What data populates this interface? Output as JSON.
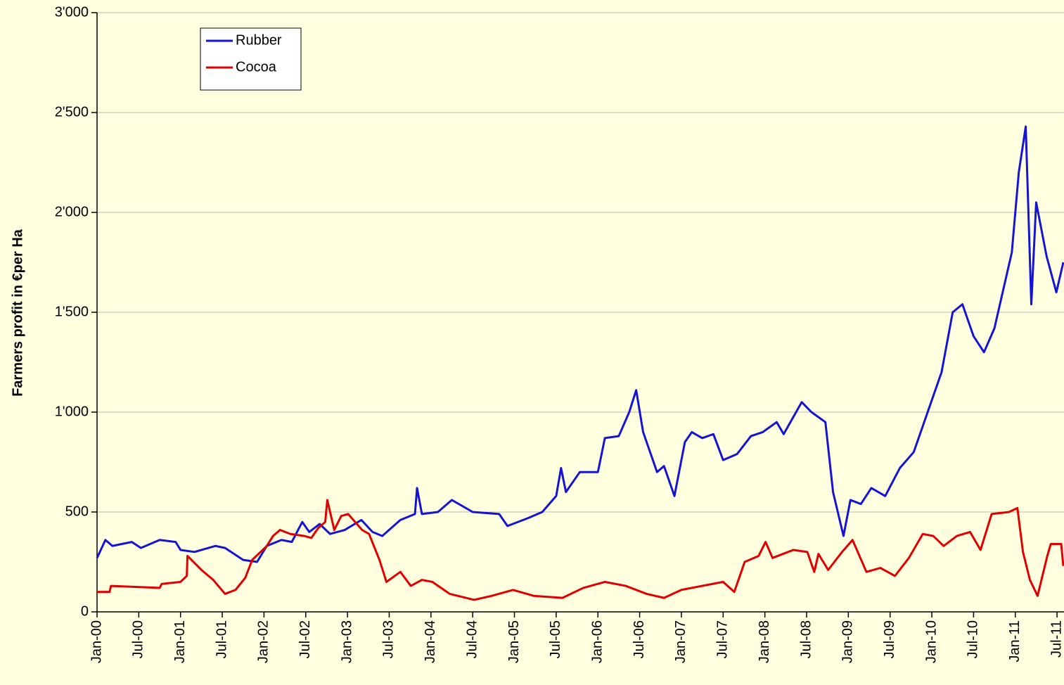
{
  "chart_data": {
    "type": "line",
    "ylabel": "Farmers profit in €per Ha",
    "xlim": [
      0,
      139
    ],
    "xticks": [
      {
        "value": 0,
        "label": "Jan-00"
      },
      {
        "value": 6,
        "label": "Jul-00"
      },
      {
        "value": 12,
        "label": "Jan-01"
      },
      {
        "value": 18,
        "label": "Jul-01"
      },
      {
        "value": 24,
        "label": "Jan-02"
      },
      {
        "value": 30,
        "label": "Jul-02"
      },
      {
        "value": 36,
        "label": "Jan-03"
      },
      {
        "value": 42,
        "label": "Jul-03"
      },
      {
        "value": 48,
        "label": "Jan-04"
      },
      {
        "value": 54,
        "label": "Jul-04"
      },
      {
        "value": 60,
        "label": "Jan-05"
      },
      {
        "value": 66,
        "label": "Jul-05"
      },
      {
        "value": 72,
        "label": "Jan-06"
      },
      {
        "value": 78,
        "label": "Jul-06"
      },
      {
        "value": 84,
        "label": "Jan-07"
      },
      {
        "value": 90,
        "label": "Jul-07"
      },
      {
        "value": 96,
        "label": "Jan-08"
      },
      {
        "value": 102,
        "label": "Jul-08"
      },
      {
        "value": 108,
        "label": "Jan-09"
      },
      {
        "value": 114,
        "label": "Jul-09"
      },
      {
        "value": 120,
        "label": "Jan-10"
      },
      {
        "value": 126,
        "label": "Jul-10"
      },
      {
        "value": 132,
        "label": "Jan-11"
      },
      {
        "value": 138,
        "label": "Jul-11"
      }
    ],
    "ylim": [
      0,
      3000
    ],
    "yticks": [
      0,
      500,
      {
        "value": 1000,
        "label": "1'000"
      },
      {
        "value": 1500,
        "label": "1'500"
      },
      {
        "value": 2000,
        "label": "2'000"
      },
      {
        "value": 2500,
        "label": "2'500"
      },
      {
        "value": 3000,
        "label": "3'000"
      }
    ],
    "grid": true,
    "legend": "upper left",
    "series": [
      {
        "name": "Rubber",
        "color": "#1414d2",
        "x": [
          0,
          1.2,
          2.2,
          5,
          6.3,
          9,
          11.3,
          12,
          14,
          17,
          18.4,
          21,
          23,
          24.4,
          26.5,
          28,
          29.5,
          30.5,
          32,
          33.5,
          35.6,
          38,
          39.6,
          41,
          43.6,
          45.7,
          46,
          46.7,
          49,
          51,
          54,
          57.8,
          59,
          62,
          64,
          66,
          66.7,
          67.4,
          69.4,
          72,
          73,
          75,
          76.5,
          77.5,
          78.5,
          80.5,
          81.5,
          83,
          84.5,
          85.5,
          87,
          88.6,
          90,
          92,
          94,
          95.7,
          97.7,
          98.7,
          101.3,
          102.7,
          104.7,
          105.8,
          107.3,
          108.3,
          109.8,
          111.3,
          113.3,
          115.4,
          117.4,
          119.4,
          121.4,
          123,
          124.4,
          126,
          127.5,
          129,
          131.5,
          132.5,
          133.5,
          134.3,
          135,
          136.5,
          137.9,
          138.9
        ],
        "values": [
          270,
          360,
          330,
          350,
          320,
          360,
          350,
          310,
          300,
          330,
          320,
          260,
          250,
          330,
          360,
          350,
          450,
          400,
          440,
          390,
          410,
          460,
          400,
          380,
          460,
          490,
          620,
          490,
          500,
          560,
          500,
          490,
          430,
          470,
          500,
          580,
          720,
          600,
          700,
          700,
          870,
          880,
          1000,
          1110,
          900,
          700,
          730,
          580,
          850,
          900,
          870,
          890,
          760,
          790,
          880,
          900,
          950,
          890,
          1050,
          1000,
          950,
          600,
          380,
          560,
          540,
          620,
          580,
          720,
          800,
          1000,
          1200,
          1500,
          1540,
          1380,
          1300,
          1420,
          1800,
          2200,
          2430,
          1540,
          2050,
          1780,
          1600,
          1750
        ]
      },
      {
        "name": "Cocoa",
        "color": "#e00000",
        "x": [
          0,
          1.8,
          2,
          9,
          9.3,
          12,
          12.9,
          13,
          15,
          16.7,
          18.4,
          19.9,
          21.3,
          22.3,
          24.4,
          25.3,
          26.3,
          27.8,
          29.8,
          30.8,
          31.8,
          32.8,
          33.1,
          34.1,
          35.1,
          36.1,
          38.1,
          39.1,
          40.6,
          41.6,
          43.6,
          45.1,
          46.7,
          48.2,
          50.7,
          54.2,
          56.7,
          59.8,
          62.8,
          66.9,
          69.9,
          73,
          76,
          79,
          81.5,
          84,
          87,
          90,
          91.6,
          93.1,
          95.1,
          96.1,
          97.1,
          100.1,
          102.1,
          103.1,
          103.7,
          105.1,
          107.1,
          108.6,
          110.6,
          112.6,
          114.7,
          116.7,
          118.7,
          120.2,
          121.7,
          123.6,
          125.5,
          127,
          128.6,
          131.1,
          132.3,
          133.1,
          134.1,
          135.2,
          136.6,
          137.1,
          138.6,
          138.9
        ],
        "values": [
          100,
          100,
          130,
          120,
          140,
          150,
          180,
          280,
          210,
          160,
          90,
          110,
          170,
          260,
          330,
          380,
          410,
          390,
          380,
          370,
          420,
          450,
          560,
          410,
          480,
          490,
          410,
          390,
          260,
          150,
          200,
          130,
          160,
          150,
          90,
          60,
          80,
          110,
          80,
          70,
          120,
          150,
          130,
          90,
          70,
          110,
          130,
          150,
          100,
          250,
          280,
          350,
          270,
          310,
          300,
          200,
          290,
          210,
          300,
          360,
          200,
          220,
          180,
          270,
          390,
          380,
          330,
          380,
          400,
          310,
          490,
          500,
          520,
          300,
          160,
          80,
          280,
          340,
          340,
          230
        ]
      }
    ]
  }
}
